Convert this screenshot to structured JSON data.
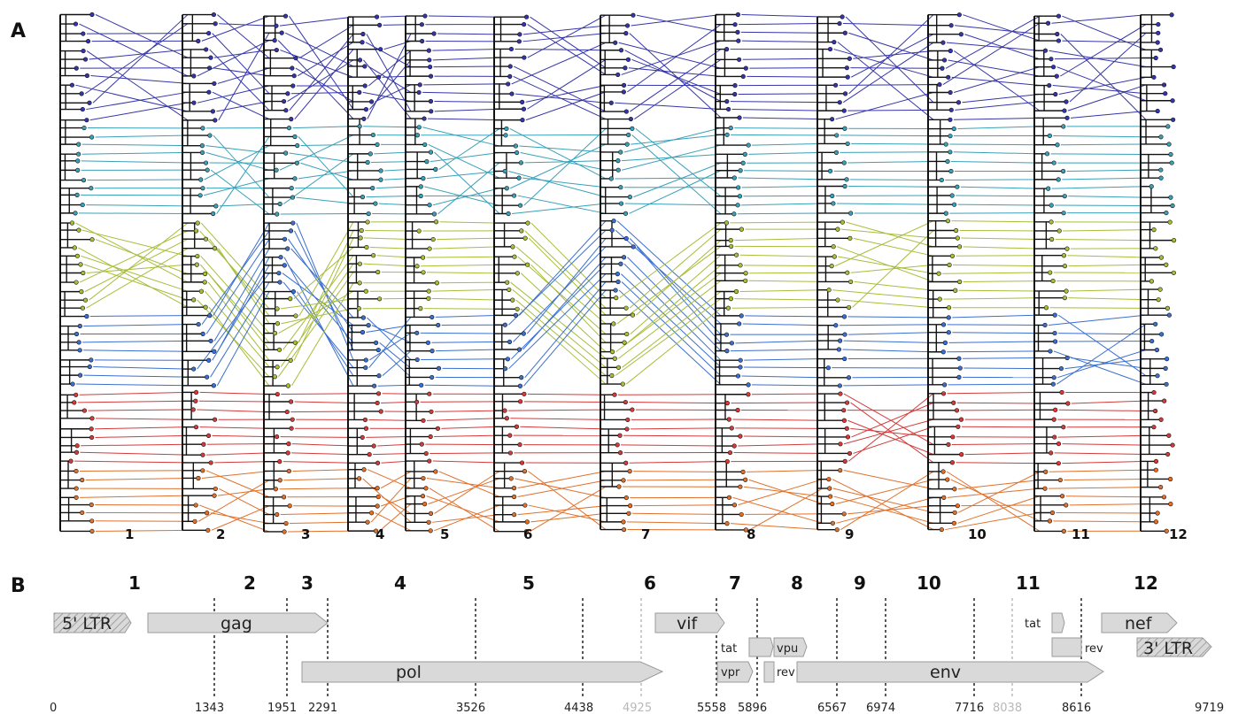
{
  "panel_a": {
    "label": "A",
    "tree_numbers": [
      "1",
      "2",
      "3",
      "4",
      "5",
      "6",
      "7",
      "8",
      "9",
      "10",
      "11",
      "12"
    ]
  },
  "panel_b": {
    "label": "B",
    "segment_numbers": [
      "1",
      "2",
      "3",
      "4",
      "5",
      "6",
      "7",
      "8",
      "9",
      "10",
      "11",
      "12"
    ],
    "genes": {
      "ltr5": "5' LTR",
      "gag": "gag",
      "pol": "pol",
      "vif": "vif",
      "vpr": "vpr",
      "tat1": "tat",
      "vpu": "vpu",
      "rev1": "rev",
      "env": "env",
      "tat2": "tat",
      "rev2": "rev",
      "nef": "nef",
      "ltr3": "3' LTR"
    },
    "coordinates": [
      "0",
      "1343",
      "1951",
      "2291",
      "3526",
      "4438",
      "4925",
      "5558",
      "5896",
      "6567",
      "6974",
      "7716",
      "8038",
      "8616",
      "9719"
    ]
  },
  "colors": {
    "group1": "#3535a8",
    "group2": "#39a0b8",
    "group3": "#a8bd3a",
    "group4": "#3a6fd0",
    "group5": "#d43a3a",
    "group6": "#e0702a",
    "gene_fill": "#d9d9d9",
    "gene_stroke": "#9a9a9a"
  }
}
